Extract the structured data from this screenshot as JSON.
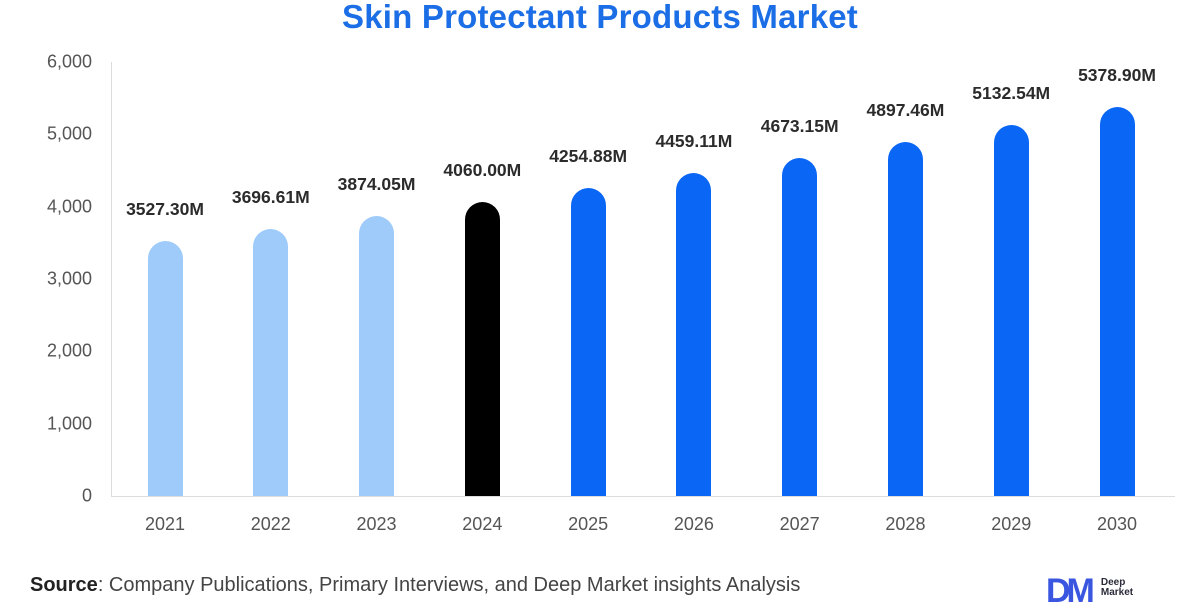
{
  "title": "Skin Protectant Products Market",
  "colors": {
    "title": "#1b6ee6",
    "historical": "#9ecbfa",
    "base_year": "#000000",
    "forecast": "#0a66f5",
    "logo": "#3a56e0"
  },
  "y_axis": {
    "ticks": [
      "0",
      "1,000",
      "2,000",
      "3,000",
      "4,000",
      "5,000",
      "6,000"
    ]
  },
  "chart_data": {
    "type": "bar",
    "title": "Skin Protectant Products Market",
    "xlabel": "",
    "ylabel": "",
    "ylim": [
      0,
      6000
    ],
    "grid": false,
    "legend": null,
    "categories": [
      "2021",
      "2022",
      "2023",
      "2024",
      "2025",
      "2026",
      "2027",
      "2028",
      "2029",
      "2030"
    ],
    "values": [
      3527.3,
      3696.61,
      3874.05,
      4060.0,
      4254.88,
      4459.11,
      4673.15,
      4897.46,
      5132.54,
      5378.9
    ],
    "data_labels": [
      "3527.30M",
      "3696.61M",
      "3874.05M",
      "4060.00M",
      "4254.88M",
      "4459.11M",
      "4673.15M",
      "4897.46M",
      "5132.54M",
      "5378.90M"
    ],
    "bar_groups": [
      "historical",
      "historical",
      "historical",
      "base_year",
      "forecast",
      "forecast",
      "forecast",
      "forecast",
      "forecast",
      "forecast"
    ],
    "unit": "M"
  },
  "footer": {
    "source_label": "Source",
    "source_text": ": Company Publications, Primary Interviews, and Deep Market insights Analysis"
  },
  "logo": {
    "mark": "DM",
    "line1": "Deep",
    "line2": "Market"
  }
}
